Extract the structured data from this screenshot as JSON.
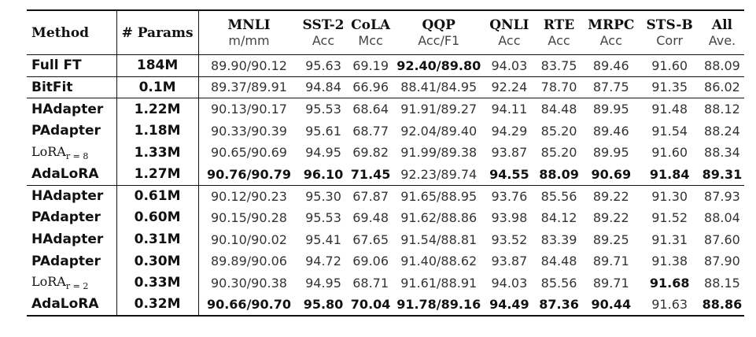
{
  "header": {
    "method": "Method",
    "params": "# Params",
    "tasks": [
      "MNLI",
      "SST-2",
      "CoLA",
      "QQP",
      "QNLI",
      "RTE",
      "MRPC",
      "STS-B",
      "All"
    ],
    "metrics": [
      "m/mm",
      "Acc",
      "Mcc",
      "Acc/F1",
      "Acc",
      "Acc",
      "Acc",
      "Corr",
      "Ave."
    ]
  },
  "rows": [
    {
      "method": "Full FT",
      "params": "184M",
      "values": [
        "89.90/90.12",
        "95.63",
        "69.19",
        "92.40/89.80",
        "94.03",
        "83.75",
        "89.46",
        "91.60",
        "88.09"
      ],
      "bold": [
        3
      ]
    },
    {
      "method": "BitFit",
      "params": "0.1M",
      "values": [
        "89.37/89.91",
        "94.84",
        "66.96",
        "88.41/84.95",
        "92.24",
        "78.70",
        "87.75",
        "91.35",
        "86.02"
      ],
      "bold": []
    },
    {
      "method": "HAdapter",
      "params": "1.22M",
      "values": [
        "90.13/90.17",
        "95.53",
        "68.64",
        "91.91/89.27",
        "94.11",
        "84.48",
        "89.95",
        "91.48",
        "88.12"
      ],
      "bold": []
    },
    {
      "method": "PAdapter",
      "params": "1.18M",
      "values": [
        "90.33/90.39",
        "95.61",
        "68.77",
        "92.04/89.40",
        "94.29",
        "85.20",
        "89.46",
        "91.54",
        "88.24"
      ],
      "bold": []
    },
    {
      "method": "LoRA",
      "method_sub": "r = 8",
      "params": "1.33M",
      "values": [
        "90.65/90.69",
        "94.95",
        "69.82",
        "91.99/89.38",
        "93.87",
        "85.20",
        "89.95",
        "91.60",
        "88.34"
      ],
      "bold": []
    },
    {
      "method": "AdaLoRA",
      "params": "1.27M",
      "values": [
        "90.76/90.79",
        "96.10",
        "71.45",
        "92.23/89.74",
        "94.55",
        "88.09",
        "90.69",
        "91.84",
        "89.31"
      ],
      "bold": [
        0,
        1,
        2,
        4,
        5,
        6,
        7,
        8
      ]
    },
    {
      "method": "HAdapter",
      "params": "0.61M",
      "values": [
        "90.12/90.23",
        "95.30",
        "67.87",
        "91.65/88.95",
        "93.76",
        "85.56",
        "89.22",
        "91.30",
        "87.93"
      ],
      "bold": []
    },
    {
      "method": "PAdapter",
      "params": "0.60M",
      "values": [
        "90.15/90.28",
        "95.53",
        "69.48",
        "91.62/88.86",
        "93.98",
        "84.12",
        "89.22",
        "91.52",
        "88.04"
      ],
      "bold": []
    },
    {
      "method": "HAdapter",
      "params": "0.31M",
      "values": [
        "90.10/90.02",
        "95.41",
        "67.65",
        "91.54/88.81",
        "93.52",
        "83.39",
        "89.25",
        "91.31",
        "87.60"
      ],
      "bold": []
    },
    {
      "method": "PAdapter",
      "params": "0.30M",
      "values": [
        "89.89/90.06",
        "94.72",
        "69.06",
        "91.40/88.62",
        "93.87",
        "84.48",
        "89.71",
        "91.38",
        "87.90"
      ],
      "bold": []
    },
    {
      "method": "LoRA",
      "method_sub": "r = 2",
      "params": "0.33M",
      "values": [
        "90.30/90.38",
        "94.95",
        "68.71",
        "91.61/88.91",
        "94.03",
        "85.56",
        "89.71",
        "91.68",
        "88.15"
      ],
      "bold": [
        7
      ]
    },
    {
      "method": "AdaLoRA",
      "params": "0.32M",
      "values": [
        "90.66/90.70",
        "95.80",
        "70.04",
        "91.78/89.16",
        "94.49",
        "87.36",
        "90.44",
        "91.63",
        "88.86"
      ],
      "bold": [
        0,
        1,
        2,
        3,
        4,
        5,
        6,
        8
      ]
    }
  ]
}
